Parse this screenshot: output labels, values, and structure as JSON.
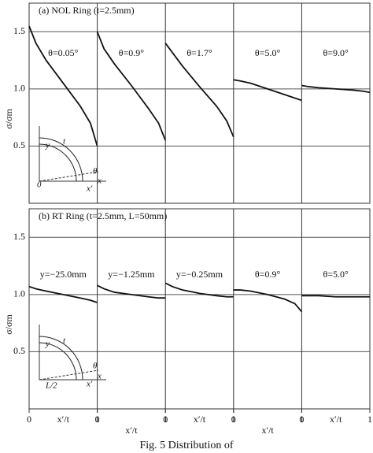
{
  "chart_data": [
    {
      "type": "line",
      "title": "(a) NOL Ring (t=2.5mm)",
      "ylabel": "σ/σm",
      "xlim": [
        0,
        1
      ],
      "ylim": [
        0,
        1.75
      ],
      "yticks": [
        0.5,
        {
          "value": 1,
          "label": "1.0"
        },
        1.5
      ],
      "grid": true,
      "inset_labels": [
        "y",
        "t",
        "θ",
        "x",
        "0",
        "x′"
      ],
      "series": [
        {
          "name": "θ=0.05°",
          "color": "#111",
          "x": [
            0,
            0.1,
            0.25,
            0.5,
            0.75,
            0.9,
            1
          ],
          "values": [
            1.55,
            1.4,
            1.25,
            1.05,
            0.85,
            0.7,
            0.5
          ]
        },
        {
          "name": "θ=0.9°",
          "color": "#111",
          "x": [
            0,
            0.1,
            0.25,
            0.5,
            0.75,
            0.9,
            1
          ],
          "values": [
            1.5,
            1.35,
            1.22,
            1.03,
            0.83,
            0.7,
            0.55
          ]
        },
        {
          "name": "θ=1.7°",
          "color": "#111",
          "x": [
            0,
            0.1,
            0.25,
            0.5,
            0.75,
            0.9,
            1
          ],
          "values": [
            1.4,
            1.32,
            1.2,
            1.02,
            0.85,
            0.72,
            0.58
          ]
        },
        {
          "name": "θ=5.0°",
          "color": "#111",
          "x": [
            0,
            0.1,
            0.25,
            0.5,
            0.75,
            0.9,
            1
          ],
          "values": [
            1.08,
            1.07,
            1.05,
            1,
            0.95,
            0.92,
            0.9
          ]
        },
        {
          "name": "θ=9.0°",
          "color": "#111",
          "x": [
            0,
            0.1,
            0.25,
            0.5,
            0.75,
            0.9,
            1
          ],
          "values": [
            1.03,
            1.02,
            1.01,
            1,
            0.99,
            0.98,
            0.97
          ]
        }
      ]
    },
    {
      "type": "line",
      "title": "(b) RT Ring (t=2.5mm, L=50mm)",
      "ylabel": "σ/σm",
      "xlabel": "x′/t",
      "xlim": [
        0,
        1
      ],
      "xticks": [
        0,
        1
      ],
      "ylim": [
        0,
        1.75
      ],
      "yticks": [
        0.5,
        {
          "value": 1,
          "label": "1.0"
        },
        1.5
      ],
      "grid": true,
      "inset_labels": [
        "y",
        "t",
        "θ",
        "x",
        "L/2",
        "x′"
      ],
      "series": [
        {
          "name": "y=−25.0mm",
          "color": "#111",
          "x": [
            0,
            0.1,
            0.25,
            0.5,
            0.75,
            0.9,
            1
          ],
          "values": [
            1.07,
            1.05,
            1.03,
            1,
            0.97,
            0.95,
            0.93
          ]
        },
        {
          "name": "y=−1.25mm",
          "color": "#111",
          "x": [
            0,
            0.1,
            0.25,
            0.5,
            0.75,
            0.9,
            1
          ],
          "values": [
            1.08,
            1.05,
            1.02,
            1,
            0.98,
            0.97,
            0.97
          ]
        },
        {
          "name": "y=−0.25mm",
          "color": "#111",
          "x": [
            0,
            0.1,
            0.25,
            0.5,
            0.75,
            0.9,
            1
          ],
          "values": [
            1.1,
            1.07,
            1.04,
            1.01,
            0.99,
            0.98,
            0.98
          ]
        },
        {
          "name": "θ=0.9°",
          "color": "#111",
          "x": [
            0,
            0.1,
            0.25,
            0.5,
            0.75,
            0.9,
            1
          ],
          "values": [
            1.04,
            1.04,
            1.03,
            1,
            0.96,
            0.92,
            0.85
          ]
        },
        {
          "name": "θ=5.0°",
          "color": "#111",
          "x": [
            0,
            0.1,
            0.25,
            0.5,
            0.75,
            0.9,
            1
          ],
          "values": [
            0.99,
            0.99,
            0.99,
            0.98,
            0.98,
            0.98,
            0.98
          ]
        }
      ]
    }
  ],
  "caption": "Fig. 5   Distribution of"
}
